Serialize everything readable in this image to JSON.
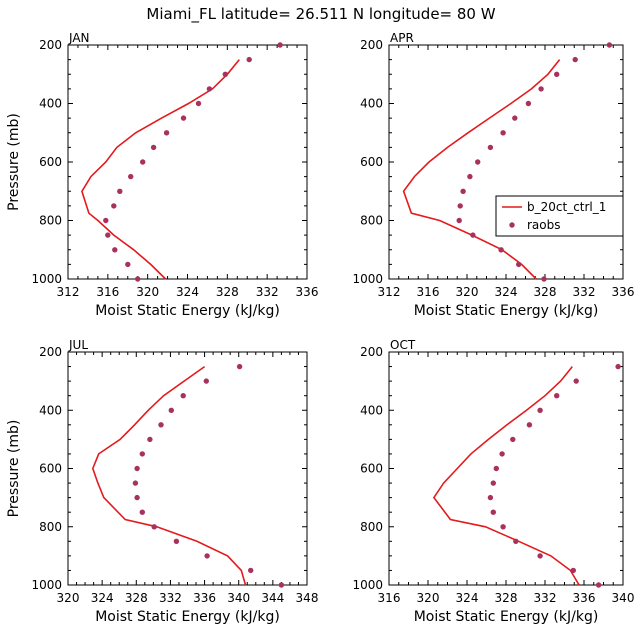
{
  "title": "Miami_FL  latitude= 26.511 N longitude= 80 W",
  "colors": {
    "model": "#e41a1c",
    "obs": "#a8325e",
    "axes": "#000000"
  },
  "legend": {
    "model_label": "b_20ct_ctrl_1",
    "obs_label": "raobs",
    "panel": "APR"
  },
  "chart_data": [
    {
      "type": "line",
      "panel_label": "JAN",
      "xlabel": "Moist Static Energy (kJ/kg)",
      "ylabel": "Pressure (mb)",
      "xlim": [
        312,
        336
      ],
      "ylim": [
        1000,
        200
      ],
      "y_reversed": true,
      "xticks": [
        312,
        316,
        320,
        324,
        328,
        332,
        336
      ],
      "yticks": [
        200,
        400,
        600,
        800,
        1000
      ],
      "series": [
        {
          "name": "b_20ct_ctrl_1",
          "kind": "line",
          "x": [
            321.8,
            320.3,
            318.6,
            316.6,
            315.0,
            314.1,
            313.4,
            314.3,
            315.8,
            316.9,
            318.8,
            321.4,
            324.1,
            326.5,
            328.0,
            329.2
          ],
          "y": [
            1000,
            950,
            900,
            850,
            800,
            775,
            700,
            650,
            600,
            550,
            500,
            450,
            400,
            350,
            300,
            250
          ]
        },
        {
          "name": "raobs",
          "kind": "scatter",
          "x": [
            319.0,
            318.0,
            316.7,
            316.0,
            315.8,
            316.6,
            317.2,
            318.3,
            319.5,
            320.6,
            321.9,
            323.6,
            325.1,
            326.2,
            327.8,
            330.2,
            333.3
          ],
          "y": [
            1000,
            950,
            900,
            850,
            800,
            750,
            700,
            650,
            600,
            550,
            500,
            450,
            400,
            350,
            300,
            250,
            200
          ]
        }
      ]
    },
    {
      "type": "line",
      "panel_label": "APR",
      "xlabel": "Moist Static Energy (kJ/kg)",
      "ylabel": "",
      "xlim": [
        312,
        336
      ],
      "ylim": [
        1000,
        200
      ],
      "y_reversed": true,
      "xticks": [
        312,
        316,
        320,
        324,
        328,
        332,
        336
      ],
      "yticks": [
        200,
        400,
        600,
        800,
        1000
      ],
      "series": [
        {
          "name": "b_20ct_ctrl_1",
          "kind": "line",
          "x": [
            327.1,
            325.6,
            323.6,
            320.5,
            317.2,
            314.3,
            313.5,
            314.6,
            316.1,
            318.0,
            320.1,
            322.3,
            324.5,
            326.6,
            328.3,
            329.5
          ],
          "y": [
            1000,
            950,
            900,
            850,
            800,
            775,
            700,
            650,
            600,
            550,
            500,
            450,
            400,
            350,
            300,
            250
          ]
        },
        {
          "name": "raobs",
          "kind": "scatter",
          "x": [
            327.9,
            325.3,
            323.5,
            320.6,
            319.2,
            319.3,
            319.6,
            320.3,
            321.1,
            322.4,
            323.7,
            324.9,
            326.3,
            327.6,
            329.2,
            331.1,
            334.6
          ],
          "y": [
            1000,
            950,
            900,
            850,
            800,
            750,
            700,
            650,
            600,
            550,
            500,
            450,
            400,
            350,
            300,
            250,
            200
          ]
        }
      ]
    },
    {
      "type": "line",
      "panel_label": "JUL",
      "xlabel": "Moist Static Energy (kJ/kg)",
      "ylabel": "Pressure (mb)",
      "xlim": [
        320,
        348
      ],
      "ylim": [
        1000,
        200
      ],
      "y_reversed": true,
      "xticks": [
        320,
        324,
        328,
        332,
        336,
        340,
        344,
        348
      ],
      "yticks": [
        200,
        400,
        600,
        800,
        1000
      ],
      "series": [
        {
          "name": "b_20ct_ctrl_1",
          "kind": "line",
          "x": [
            340.8,
            340.3,
            338.7,
            335.1,
            330.4,
            326.7,
            324.2,
            323.5,
            322.9,
            323.6,
            326.1,
            327.8,
            329.4,
            331.2,
            333.6,
            336.0
          ],
          "y": [
            1000,
            950,
            900,
            850,
            800,
            775,
            700,
            650,
            600,
            550,
            500,
            450,
            400,
            350,
            300,
            250
          ]
        },
        {
          "name": "raobs",
          "kind": "scatter",
          "x": [
            345.0,
            341.4,
            336.3,
            332.7,
            330.1,
            328.7,
            328.1,
            327.9,
            328.1,
            328.7,
            329.6,
            330.9,
            332.1,
            333.5,
            336.2,
            340.1
          ],
          "y": [
            1000,
            950,
            900,
            850,
            800,
            750,
            700,
            650,
            600,
            550,
            500,
            450,
            400,
            350,
            300,
            250
          ]
        }
      ]
    },
    {
      "type": "line",
      "panel_label": "OCT",
      "xlabel": "Moist Static Energy (kJ/kg)",
      "ylabel": "",
      "xlim": [
        316,
        340
      ],
      "ylim": [
        1000,
        200
      ],
      "y_reversed": true,
      "xticks": [
        316,
        320,
        324,
        328,
        332,
        336,
        340
      ],
      "yticks": [
        200,
        400,
        600,
        800,
        1000
      ],
      "series": [
        {
          "name": "b_20ct_ctrl_1",
          "kind": "line",
          "x": [
            335.5,
            334.6,
            332.6,
            329.3,
            325.9,
            322.3,
            320.6,
            321.6,
            323.0,
            324.4,
            326.2,
            328.1,
            330.1,
            332.0,
            333.6,
            334.8
          ],
          "y": [
            1000,
            950,
            900,
            850,
            800,
            775,
            700,
            650,
            600,
            550,
            500,
            450,
            400,
            350,
            300,
            250
          ]
        },
        {
          "name": "raobs",
          "kind": "scatter",
          "x": [
            337.5,
            334.9,
            331.5,
            329.0,
            327.7,
            326.7,
            326.4,
            326.7,
            327.0,
            327.6,
            328.7,
            330.4,
            331.5,
            333.2,
            335.2,
            339.5
          ],
          "y": [
            1000,
            950,
            900,
            850,
            800,
            750,
            700,
            650,
            600,
            550,
            500,
            450,
            400,
            350,
            300,
            250
          ]
        }
      ]
    }
  ]
}
